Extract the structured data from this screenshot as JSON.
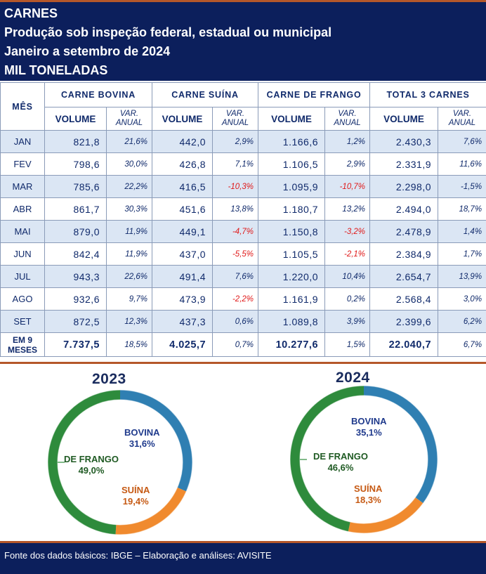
{
  "header": {
    "line1": "CARNES",
    "line2": "Produção sob inspeção federal, estadual ou municipal",
    "line3": "Janeiro a setembro de 2024",
    "line4": "MIL TONELADAS"
  },
  "table": {
    "month_header": "MÊS",
    "groups": [
      "CARNE BOVINA",
      "CARNE SUÍNA",
      "CARNE DE FRANGO",
      "TOTAL 3 CARNES"
    ],
    "sub_volume": "VOLUME",
    "sub_var_1": "VAR.",
    "sub_var_2": "ANUAL",
    "rows": [
      {
        "mes": "JAN",
        "cells": [
          "821,8",
          "21,6%",
          "442,0",
          "2,9%",
          "1.166,6",
          "1,2%",
          "2.430,3",
          "7,6%"
        ]
      },
      {
        "mes": "FEV",
        "cells": [
          "798,6",
          "30,0%",
          "426,8",
          "7,1%",
          "1.106,5",
          "2,9%",
          "2.331,9",
          "11,6%"
        ]
      },
      {
        "mes": "MAR",
        "cells": [
          "785,6",
          "22,2%",
          "416,5",
          "-10,3%",
          "1.095,9",
          "-10,7%",
          "2.298,0",
          "-1,5%"
        ]
      },
      {
        "mes": "ABR",
        "cells": [
          "861,7",
          "30,3%",
          "451,6",
          "13,8%",
          "1.180,7",
          "13,2%",
          "2.494,0",
          "18,7%"
        ]
      },
      {
        "mes": "MAI",
        "cells": [
          "879,0",
          "11,9%",
          "449,1",
          "-4,7%",
          "1.150,8",
          "-3,2%",
          "2.478,9",
          "1,4%"
        ]
      },
      {
        "mes": "JUN",
        "cells": [
          "842,4",
          "11,9%",
          "437,0",
          "-5,5%",
          "1.105,5",
          "-2,1%",
          "2.384,9",
          "1,7%"
        ]
      },
      {
        "mes": "JUL",
        "cells": [
          "943,3",
          "22,6%",
          "491,4",
          "7,6%",
          "1.220,0",
          "10,4%",
          "2.654,7",
          "13,9%"
        ]
      },
      {
        "mes": "AGO",
        "cells": [
          "932,6",
          "9,7%",
          "473,9",
          "-2,2%",
          "1.161,9",
          "0,2%",
          "2.568,4",
          "3,0%"
        ]
      },
      {
        "mes": "SET",
        "cells": [
          "872,5",
          "12,3%",
          "437,3",
          "0,6%",
          "1.089,8",
          "3,9%",
          "2.399,6",
          "6,2%"
        ]
      }
    ],
    "total": {
      "mes_1": "EM 9",
      "mes_2": "MESES",
      "cells": [
        "7.737,5",
        "18,5%",
        "4.025,7",
        "0,7%",
        "10.277,6",
        "1,5%",
        "22.040,7",
        "6,7%"
      ]
    },
    "negative_color": "#e01b1b"
  },
  "chart_data": [
    {
      "type": "pie",
      "title": "2023",
      "categories": [
        "BOVINA",
        "SUÍNA",
        "DE FRANGO"
      ],
      "values": [
        31.6,
        19.4,
        49.0
      ],
      "value_labels": [
        "31,6%",
        "19,4%",
        "49,0%"
      ],
      "colors": [
        "#2f7fb2",
        "#f08a2e",
        "#2e8b3c"
      ],
      "label_colors": [
        "#1f3a8c",
        "#c65a14",
        "#1f5a23"
      ]
    },
    {
      "type": "pie",
      "title": "2024",
      "categories": [
        "BOVINA",
        "SUÍNA",
        "DE FRANGO"
      ],
      "values": [
        35.1,
        18.3,
        46.6
      ],
      "value_labels": [
        "35,1%",
        "18,3%",
        "46,6%"
      ],
      "colors": [
        "#2f7fb2",
        "#f08a2e",
        "#2e8b3c"
      ],
      "label_colors": [
        "#1f3a8c",
        "#c65a14",
        "#1f5a23"
      ]
    }
  ],
  "footer": {
    "text": "Fonte dos dados básicos: IBGE – Elaboração e análises: AVISITE"
  }
}
